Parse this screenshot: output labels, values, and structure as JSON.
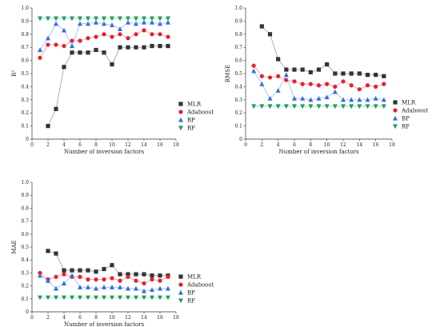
{
  "figure": {
    "colors": {
      "MLR": "#333333",
      "Adaboost": "#e8202a",
      "BP": "#2f6fe0",
      "RF": "#1e9e62"
    }
  },
  "chart_data": [
    {
      "type": "line",
      "panel": "top-left",
      "xlabel": "Number of inversion factors",
      "ylabel": "R²",
      "xlim": [
        0,
        18
      ],
      "ylim": [
        0,
        1.0
      ],
      "xticks": [
        0,
        2,
        4,
        6,
        8,
        10,
        12,
        14,
        16,
        18
      ],
      "yticks": [
        0,
        0.1,
        0.2,
        0.3,
        0.4,
        0.5,
        0.6,
        0.7,
        0.8,
        0.9,
        1.0
      ],
      "x": [
        1,
        2,
        3,
        4,
        5,
        6,
        7,
        8,
        9,
        10,
        11,
        12,
        13,
        14,
        15,
        16,
        17
      ],
      "legend_position": "bottom-right",
      "series": [
        {
          "name": "MLR",
          "marker": "square",
          "values": [
            null,
            0.1,
            0.23,
            0.55,
            0.66,
            0.66,
            0.66,
            0.68,
            0.66,
            0.57,
            0.7,
            0.7,
            0.7,
            0.7,
            0.71,
            0.71,
            0.71
          ]
        },
        {
          "name": "Adaboost",
          "marker": "circle",
          "values": [
            0.62,
            0.72,
            0.72,
            0.71,
            0.75,
            0.75,
            0.77,
            0.78,
            0.8,
            0.78,
            0.8,
            0.77,
            0.8,
            0.83,
            0.8,
            0.8,
            0.78
          ]
        },
        {
          "name": "BP",
          "marker": "triangle-up",
          "values": [
            0.68,
            0.77,
            0.88,
            0.83,
            0.71,
            0.88,
            0.88,
            0.89,
            0.88,
            0.87,
            0.84,
            0.89,
            0.88,
            0.89,
            0.89,
            0.88,
            0.89
          ]
        },
        {
          "name": "RF",
          "marker": "triangle-down",
          "values": [
            0.92,
            0.92,
            0.92,
            0.92,
            0.92,
            0.92,
            0.92,
            0.92,
            0.92,
            0.92,
            0.92,
            0.92,
            0.92,
            0.92,
            0.92,
            0.92,
            0.92
          ]
        }
      ]
    },
    {
      "type": "line",
      "panel": "top-right",
      "xlabel": "Number of inversion factors",
      "ylabel": "RMSE",
      "xlim": [
        0,
        18
      ],
      "ylim": [
        0,
        1.0
      ],
      "xticks": [
        0,
        2,
        4,
        6,
        8,
        10,
        12,
        14,
        16,
        18
      ],
      "yticks": [
        0,
        0.1,
        0.2,
        0.3,
        0.4,
        0.5,
        0.6,
        0.7,
        0.8,
        0.9,
        1.0
      ],
      "x": [
        1,
        2,
        3,
        4,
        5,
        6,
        7,
        8,
        9,
        10,
        11,
        12,
        13,
        14,
        15,
        16,
        17
      ],
      "legend_position": "right",
      "series": [
        {
          "name": "MLR",
          "marker": "square",
          "values": [
            null,
            0.86,
            0.8,
            0.61,
            0.53,
            0.53,
            0.53,
            0.51,
            0.53,
            0.57,
            0.5,
            0.5,
            0.5,
            0.5,
            0.49,
            0.49,
            0.48
          ]
        },
        {
          "name": "Adaboost",
          "marker": "circle",
          "values": [
            0.56,
            0.48,
            0.47,
            0.48,
            0.45,
            0.44,
            0.42,
            0.42,
            0.41,
            0.42,
            0.4,
            0.44,
            0.41,
            0.38,
            0.41,
            0.4,
            0.42
          ]
        },
        {
          "name": "BP",
          "marker": "triangle-up",
          "values": [
            0.52,
            0.42,
            0.31,
            0.37,
            0.49,
            0.31,
            0.31,
            0.3,
            0.31,
            0.32,
            0.36,
            0.3,
            0.3,
            0.3,
            0.3,
            0.31,
            0.3
          ]
        },
        {
          "name": "RF",
          "marker": "triangle-down",
          "values": [
            0.25,
            0.25,
            0.25,
            0.25,
            0.25,
            0.25,
            0.25,
            0.25,
            0.25,
            0.25,
            0.25,
            0.25,
            0.25,
            0.25,
            0.25,
            0.25,
            0.25
          ]
        }
      ]
    },
    {
      "type": "line",
      "panel": "bottom-left",
      "xlabel": "Number of inversion factors",
      "ylabel": "MAE",
      "xlim": [
        0,
        18
      ],
      "ylim": [
        0,
        1.0
      ],
      "xticks": [
        0,
        2,
        4,
        6,
        8,
        10,
        12,
        14,
        16,
        18
      ],
      "yticks": [
        0,
        0.1,
        0.2,
        0.3,
        0.4,
        0.5,
        0.6,
        0.7,
        0.8,
        0.9,
        1.0
      ],
      "x": [
        1,
        2,
        3,
        4,
        5,
        6,
        7,
        8,
        9,
        10,
        11,
        12,
        13,
        14,
        15,
        16,
        17
      ],
      "legend_position": "bottom-right",
      "series": [
        {
          "name": "MLR",
          "marker": "square",
          "values": [
            null,
            0.47,
            0.45,
            0.32,
            0.32,
            0.32,
            0.32,
            0.31,
            0.33,
            0.36,
            0.29,
            0.29,
            0.29,
            0.29,
            0.28,
            0.28,
            0.28
          ]
        },
        {
          "name": "Adaboost",
          "marker": "circle",
          "values": [
            0.3,
            0.25,
            0.27,
            0.29,
            0.27,
            0.27,
            0.25,
            0.25,
            0.25,
            0.26,
            0.24,
            0.27,
            0.24,
            0.22,
            0.25,
            0.24,
            0.27
          ]
        },
        {
          "name": "BP",
          "marker": "triangle-up",
          "values": [
            0.28,
            0.24,
            0.18,
            0.22,
            0.28,
            0.19,
            0.19,
            0.18,
            0.19,
            0.19,
            0.19,
            0.18,
            0.18,
            0.16,
            0.17,
            0.18,
            0.18
          ]
        },
        {
          "name": "RF",
          "marker": "triangle-down",
          "values": [
            0.11,
            0.11,
            0.11,
            0.11,
            0.11,
            0.11,
            0.11,
            0.11,
            0.11,
            0.11,
            0.11,
            0.11,
            0.11,
            0.11,
            0.11,
            0.11,
            0.11
          ]
        }
      ]
    }
  ]
}
